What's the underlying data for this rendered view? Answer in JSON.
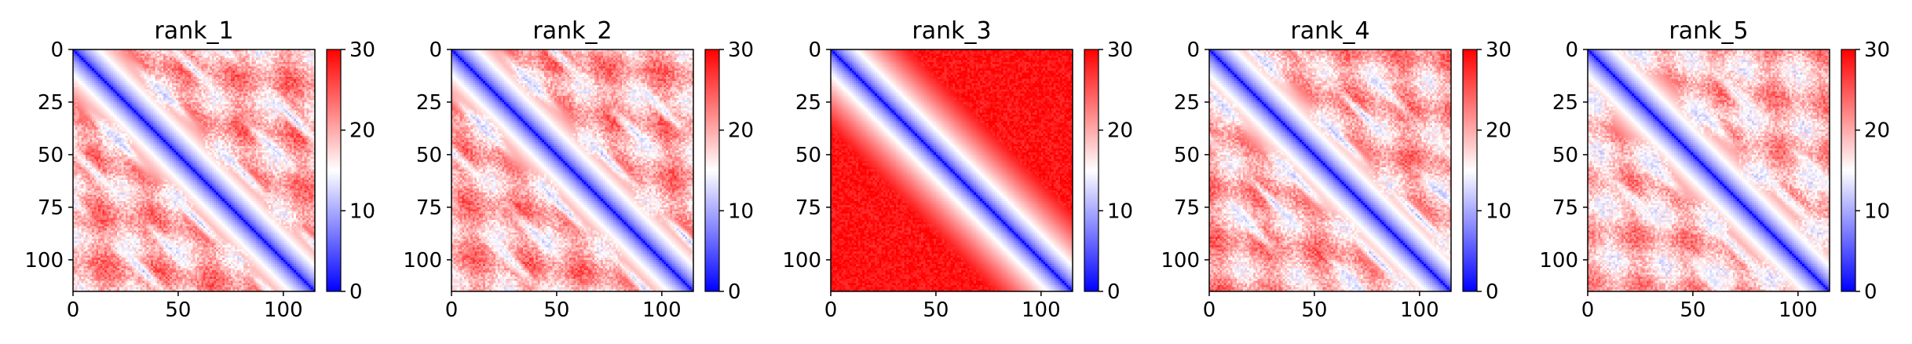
{
  "chart_data": [
    {
      "type": "heatmap",
      "title": "rank_1",
      "xlabel": "",
      "ylabel": "",
      "size": 115,
      "xlim": [
        0,
        115
      ],
      "ylim": [
        115,
        0
      ],
      "xticks": [
        "0",
        "50",
        "100"
      ],
      "yticks": [
        "0",
        "25",
        "50",
        "75",
        "100"
      ],
      "colorbar": {
        "min": 0,
        "max": 30,
        "ticks": [
          "0",
          "10",
          "20",
          "30"
        ],
        "colormap": "bwr"
      },
      "pattern": {
        "background": 20,
        "bands": [
          {
            "offset": 22,
            "value": 12,
            "width": 4
          },
          {
            "offset": 48,
            "value": 13,
            "width": 5
          },
          {
            "offset": 72,
            "value": 12,
            "width": 5
          }
        ],
        "periodic": 24
      }
    },
    {
      "type": "heatmap",
      "title": "rank_2",
      "xlabel": "",
      "ylabel": "",
      "size": 115,
      "xlim": [
        0,
        115
      ],
      "ylim": [
        115,
        0
      ],
      "xticks": [
        "0",
        "50",
        "100"
      ],
      "yticks": [
        "0",
        "25",
        "50",
        "75",
        "100"
      ],
      "colorbar": {
        "min": 0,
        "max": 30,
        "ticks": [
          "0",
          "10",
          "20",
          "30"
        ],
        "colormap": "bwr"
      },
      "pattern": {
        "background": 20,
        "bands": [
          {
            "offset": 22,
            "value": 12,
            "width": 4
          },
          {
            "offset": 48,
            "value": 13,
            "width": 5
          },
          {
            "offset": 72,
            "value": 13,
            "width": 5
          }
        ],
        "periodic": 24
      }
    },
    {
      "type": "heatmap",
      "title": "rank_3",
      "xlabel": "",
      "ylabel": "",
      "size": 115,
      "xlim": [
        0,
        115
      ],
      "ylim": [
        115,
        0
      ],
      "xticks": [
        "0",
        "50",
        "100"
      ],
      "yticks": [
        "0",
        "25",
        "50",
        "75",
        "100"
      ],
      "colorbar": {
        "min": 0,
        "max": 30,
        "ticks": [
          "0",
          "10",
          "20",
          "30"
        ],
        "colormap": "bwr"
      },
      "pattern": {
        "background": 29,
        "bands": [],
        "periodic": 0
      }
    },
    {
      "type": "heatmap",
      "title": "rank_4",
      "xlabel": "",
      "ylabel": "",
      "size": 115,
      "xlim": [
        0,
        115
      ],
      "ylim": [
        115,
        0
      ],
      "xticks": [
        "0",
        "50",
        "100"
      ],
      "yticks": [
        "0",
        "25",
        "50",
        "75",
        "100"
      ],
      "colorbar": {
        "min": 0,
        "max": 30,
        "ticks": [
          "0",
          "10",
          "20",
          "30"
        ],
        "colormap": "bwr"
      },
      "pattern": {
        "background": 20,
        "bands": [
          {
            "offset": 20,
            "value": 12,
            "width": 4
          },
          {
            "offset": 42,
            "value": 12,
            "width": 4
          },
          {
            "offset": 64,
            "value": 13,
            "width": 5
          }
        ],
        "periodic": 22
      }
    },
    {
      "type": "heatmap",
      "title": "rank_5",
      "xlabel": "",
      "ylabel": "",
      "size": 115,
      "xlim": [
        0,
        115
      ],
      "ylim": [
        115,
        0
      ],
      "xticks": [
        "0",
        "50",
        "100"
      ],
      "yticks": [
        "0",
        "25",
        "50",
        "75",
        "100"
      ],
      "colorbar": {
        "min": 0,
        "max": 30,
        "ticks": [
          "0",
          "10",
          "20",
          "30"
        ],
        "colormap": "bwr"
      },
      "pattern": {
        "background": 19,
        "bands": [
          {
            "offset": 24,
            "value": 13,
            "width": 5
          },
          {
            "offset": 50,
            "value": 14,
            "width": 6
          }
        ],
        "periodic": 0
      }
    }
  ]
}
